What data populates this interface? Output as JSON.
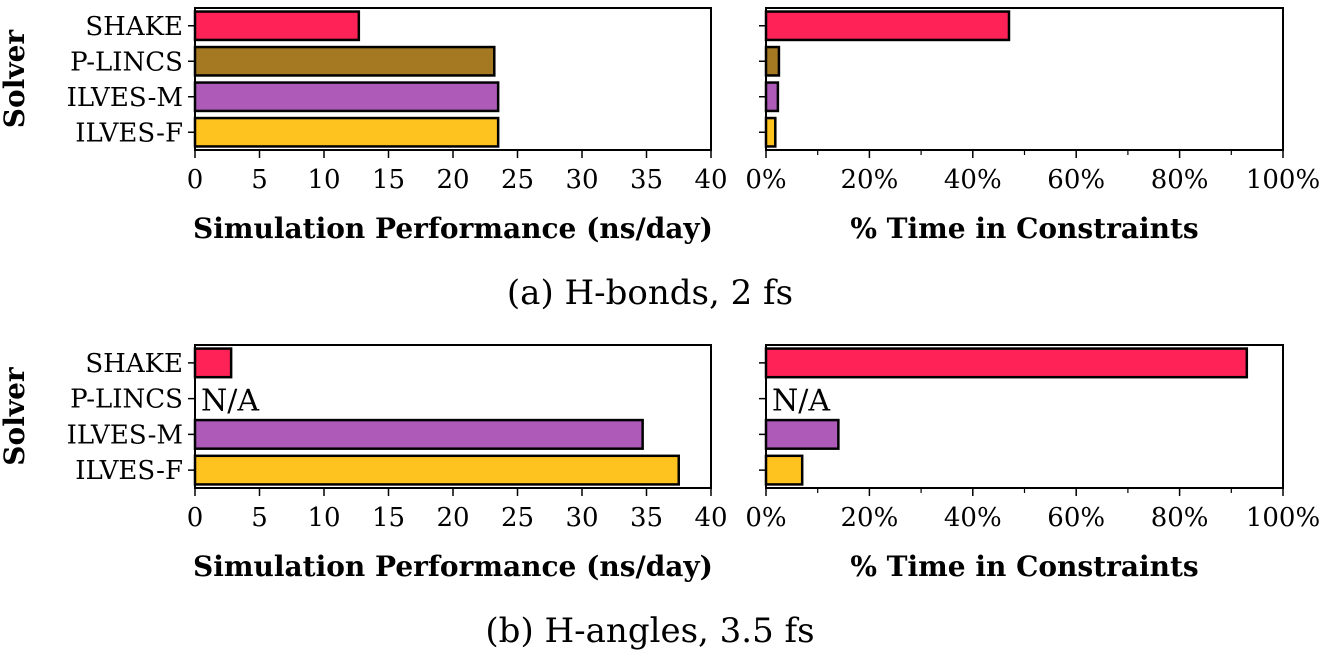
{
  "solvers": [
    "SHAKE",
    "P-LINCS",
    "ILVES-M",
    "ILVES-F"
  ],
  "colors": {
    "SHAKE": "#ff2257",
    "P-LINCS": "#a57822",
    "ILVES-M": "#ad5ab8",
    "ILVES-F": "#ffc31f"
  },
  "na_label": "N/A",
  "panels": [
    {
      "caption": "(a) H-bonds, 2 fs",
      "ylabel": "Solver"
    },
    {
      "caption": "(b) H-angles, 3.5 fs",
      "ylabel": "Solver"
    }
  ],
  "chart_data": [
    {
      "type": "bar",
      "orientation": "horizontal",
      "panel": "(a) H-bonds, 2 fs",
      "categories": [
        "SHAKE",
        "P-LINCS",
        "ILVES-M",
        "ILVES-F"
      ],
      "values": [
        12.7,
        23.2,
        23.5,
        23.5
      ],
      "xlabel": "Simulation Performance (ns/day)",
      "ylabel": "Solver",
      "xlim": [
        0,
        40
      ],
      "xticks": [
        "0",
        "5",
        "10",
        "15",
        "20",
        "25",
        "30",
        "35",
        "40"
      ],
      "na": []
    },
    {
      "type": "bar",
      "orientation": "horizontal",
      "panel": "(a) H-bonds, 2 fs",
      "categories": [
        "SHAKE",
        "P-LINCS",
        "ILVES-M",
        "ILVES-F"
      ],
      "values": [
        47,
        2.5,
        2.3,
        1.8
      ],
      "xlabel": "% Time in Constraints",
      "xlim": [
        0,
        100
      ],
      "xticks": [
        "0%",
        "20%",
        "40%",
        "60%",
        "80%",
        "100%"
      ],
      "na": []
    },
    {
      "type": "bar",
      "orientation": "horizontal",
      "panel": "(b) H-angles, 3.5 fs",
      "categories": [
        "SHAKE",
        "P-LINCS",
        "ILVES-M",
        "ILVES-F"
      ],
      "values": [
        2.8,
        null,
        34.7,
        37.5
      ],
      "xlabel": "Simulation Performance (ns/day)",
      "ylabel": "Solver",
      "xlim": [
        0,
        40
      ],
      "xticks": [
        "0",
        "5",
        "10",
        "15",
        "20",
        "25",
        "30",
        "35",
        "40"
      ],
      "na": [
        "P-LINCS"
      ]
    },
    {
      "type": "bar",
      "orientation": "horizontal",
      "panel": "(b) H-angles, 3.5 fs",
      "categories": [
        "SHAKE",
        "P-LINCS",
        "ILVES-M",
        "ILVES-F"
      ],
      "values": [
        93,
        null,
        14,
        7
      ],
      "xlabel": "% Time in Constraints",
      "xlim": [
        0,
        100
      ],
      "xticks": [
        "0%",
        "20%",
        "40%",
        "60%",
        "80%",
        "100%"
      ],
      "na": [
        "P-LINCS"
      ]
    }
  ]
}
